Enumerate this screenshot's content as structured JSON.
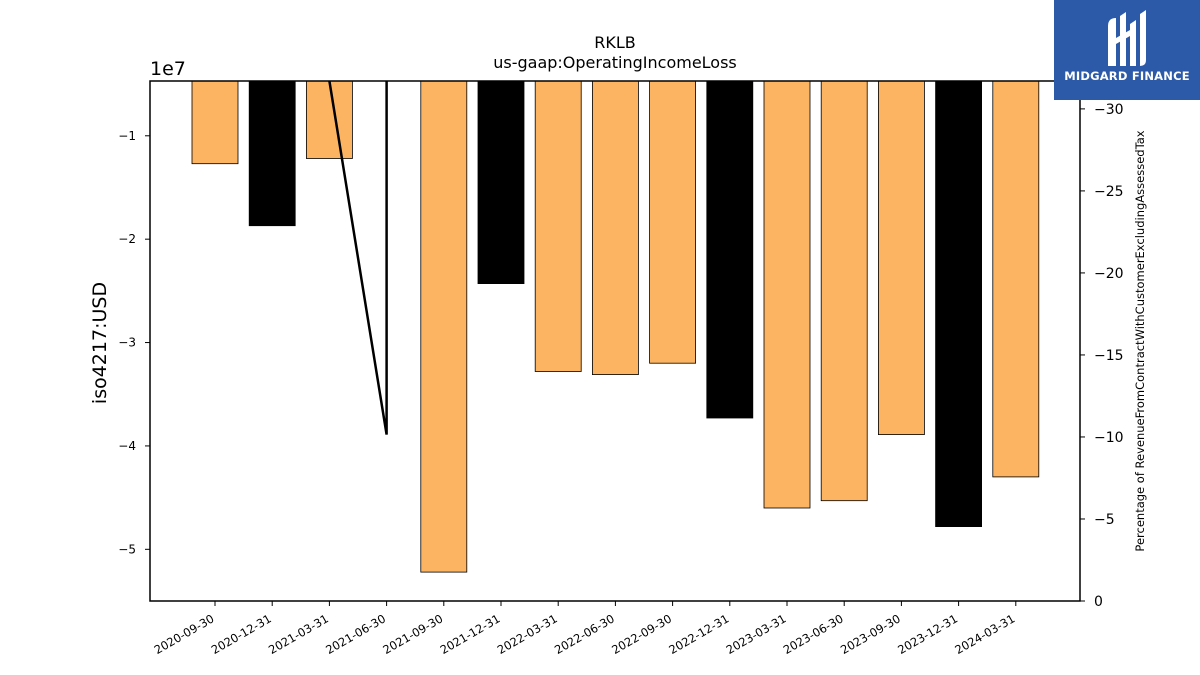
{
  "chart_data": {
    "type": "bar",
    "title": "RKLB",
    "subtitle": "us-gaap:OperatingIncomeLoss",
    "ylabel": "iso4217:USD",
    "y2label": "Percentage of RevenueFromContractWithCustomerExcludingAssessedTax",
    "offset_label": "1e7",
    "ylim": [
      -55000000,
      -4700000
    ],
    "y2lim": [
      0,
      -31.7
    ],
    "y_ticks": [
      -10000000,
      -20000000,
      -30000000,
      -40000000,
      -50000000
    ],
    "y_tick_labels": [
      "−1",
      "−2",
      "−3",
      "−4",
      "−5"
    ],
    "y2_ticks": [
      0,
      -5,
      -10,
      -15,
      -20,
      -25,
      -30
    ],
    "y2_tick_labels": [
      "0",
      "−5",
      "−10",
      "−15",
      "−20",
      "−25",
      "−30"
    ],
    "categories": [
      "2020-09-30",
      "2020-12-31",
      "2021-03-31",
      "2021-06-30",
      "2021-09-30",
      "2021-12-31",
      "2022-03-31",
      "2022-06-30",
      "2022-09-30",
      "2022-12-31",
      "2023-03-31",
      "2023-06-30",
      "2023-09-30",
      "2023-12-31",
      "2024-03-31"
    ],
    "values": [
      -12700000,
      -18700000,
      -12200000,
      null,
      -52200000,
      -24300000,
      -32800000,
      -33100000,
      -32000000,
      -37300000,
      -46000000,
      -45300000,
      -38900000,
      -47800000,
      -43000000
    ],
    "bar_colors": [
      "#fcb462",
      "#000000",
      "#fcb462",
      null,
      "#fcb462",
      "#000000",
      "#fcb462",
      "#fcb462",
      "#fcb462",
      "#000000",
      "#fcb462",
      "#fcb462",
      "#fcb462",
      "#000000",
      "#fcb462"
    ],
    "line": {
      "color": "#000000",
      "x": [
        "2021-03-31",
        "2021-06-30",
        "2021-06-30"
      ],
      "values": [
        -4700000,
        -38900000,
        -4700000
      ]
    },
    "grid": false
  },
  "logo": {
    "text": "MIDGARD FINANCE"
  }
}
